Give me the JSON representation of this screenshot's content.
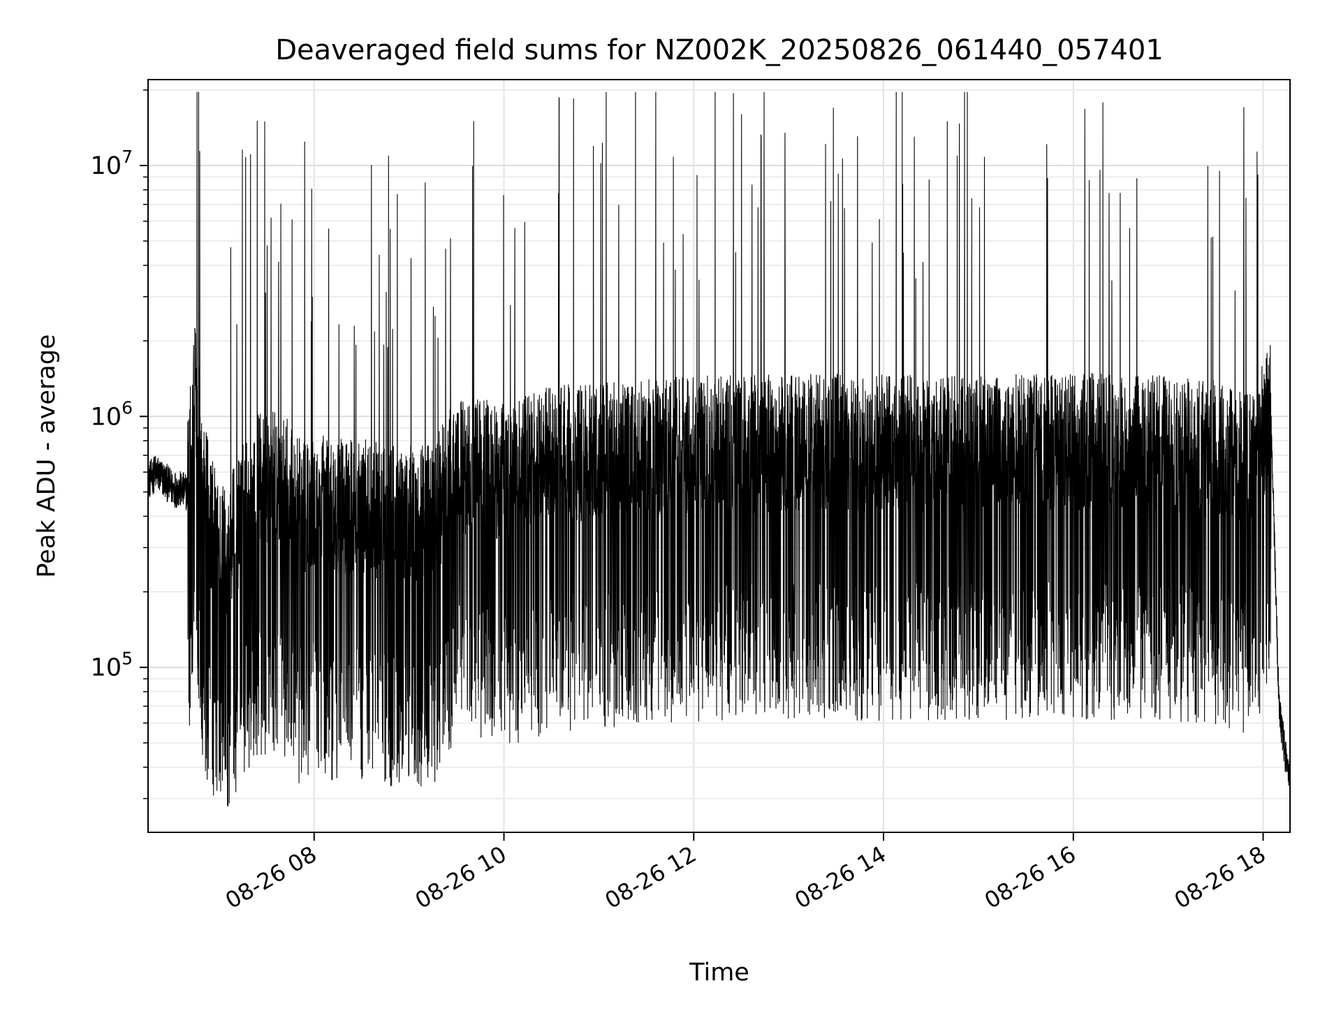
{
  "chart_data": {
    "type": "line",
    "title": "Deaveraged field sums for NZ002K_20250826_061440_057401",
    "xlabel": "Time",
    "ylabel": "Peak ADU - average",
    "x_range": [
      "2025-08-26 06:15",
      "2025-08-26 18:17"
    ],
    "y_scale": "log",
    "y_range": [
      22000,
      22000000
    ],
    "x_ticks": [
      {
        "label": "08-26 08",
        "time": "2025-08-26 08:00"
      },
      {
        "label": "08-26 10",
        "time": "2025-08-26 10:00"
      },
      {
        "label": "08-26 12",
        "time": "2025-08-26 12:00"
      },
      {
        "label": "08-26 14",
        "time": "2025-08-26 14:00"
      },
      {
        "label": "08-26 16",
        "time": "2025-08-26 16:00"
      },
      {
        "label": "08-26 18",
        "time": "2025-08-26 18:00"
      }
    ],
    "y_ticks": [
      {
        "base": "10",
        "exp": "5",
        "value": 100000
      },
      {
        "base": "10",
        "exp": "6",
        "value": 1000000
      },
      {
        "base": "10",
        "exp": "7",
        "value": 10000000
      }
    ],
    "grid": true,
    "line_color": "#000000",
    "series": [
      {
        "x": [
          "2025-08-26 06:15",
          "2025-08-26 06:20",
          "2025-08-26 06:30",
          "2025-08-26 06:40",
          "2025-08-26 06:45",
          "2025-08-26 06:50",
          "2025-08-26 07:00",
          "2025-08-26 07:10",
          "2025-08-26 07:20",
          "2025-08-26 07:25",
          "2025-08-26 07:40",
          "2025-08-26 07:50",
          "2025-08-26 08:00",
          "2025-08-26 08:10",
          "2025-08-26 08:30",
          "2025-08-26 08:45",
          "2025-08-26 09:00",
          "2025-08-26 09:15",
          "2025-08-26 09:20",
          "2025-08-26 09:30",
          "2025-08-26 09:45",
          "2025-08-26 10:00",
          "2025-08-26 10:30",
          "2025-08-26 11:00",
          "2025-08-26 11:30",
          "2025-08-26 12:00",
          "2025-08-26 12:30",
          "2025-08-26 13:00",
          "2025-08-26 13:30",
          "2025-08-26 14:00",
          "2025-08-26 14:30",
          "2025-08-26 15:00",
          "2025-08-26 15:30",
          "2025-08-26 16:00",
          "2025-08-26 16:30",
          "2025-08-26 17:00",
          "2025-08-26 17:30",
          "2025-08-26 17:55",
          "2025-08-26 18:05",
          "2025-08-26 18:10",
          "2025-08-26 18:15"
        ],
        "y": [
          550000,
          600000,
          520000,
          500000,
          1200000,
          450000,
          250000,
          300000,
          450000,
          500000,
          500000,
          380000,
          420000,
          400000,
          380000,
          370000,
          360000,
          360000,
          420000,
          560000,
          560000,
          520000,
          620000,
          640000,
          660000,
          680000,
          680000,
          690000,
          690000,
          690000,
          690000,
          680000,
          690000,
          700000,
          690000,
          680000,
          660000,
          600000,
          1000000,
          70000,
          40000
        ]
      }
    ]
  }
}
